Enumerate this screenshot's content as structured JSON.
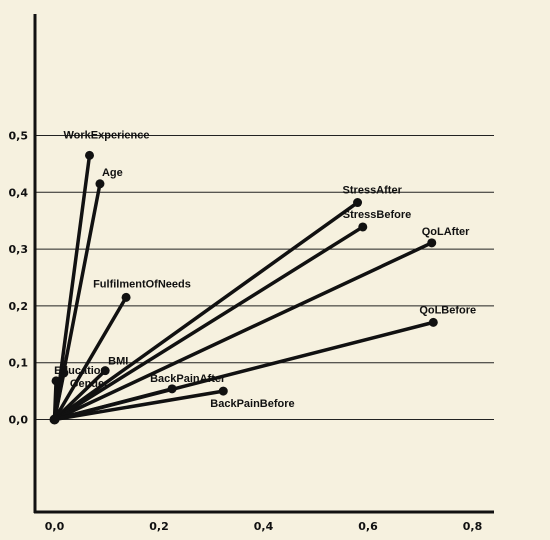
{
  "chart_data": {
    "type": "line",
    "title": "",
    "xlabel": "",
    "ylabel": "",
    "xlim": [
      -0.02,
      0.83
    ],
    "ylim": [
      -0.2,
      0.59
    ],
    "x_ticks": [
      {
        "value": 0.0,
        "label": "0,0"
      },
      {
        "value": 0.2,
        "label": "0,2"
      },
      {
        "value": 0.4,
        "label": "0,4"
      },
      {
        "value": 0.6,
        "label": "0,6"
      },
      {
        "value": 0.8,
        "label": "0,8"
      }
    ],
    "y_ticks": [
      {
        "value": 0.0,
        "label": "0,0"
      },
      {
        "value": 0.1,
        "label": "0,1"
      },
      {
        "value": 0.2,
        "label": "0,2"
      },
      {
        "value": 0.3,
        "label": "0,3"
      },
      {
        "value": 0.4,
        "label": "0,4"
      },
      {
        "value": 0.5,
        "label": "0,5"
      }
    ],
    "grid": "horizontal",
    "origin": [
      0.0,
      0.0
    ],
    "vectors": [
      {
        "name": "WorkExperience",
        "x": 0.067,
        "y": 0.465
      },
      {
        "name": "Age",
        "x": 0.087,
        "y": 0.415
      },
      {
        "name": "FulfilmentOfNeeds",
        "x": 0.137,
        "y": 0.215
      },
      {
        "name": "Education",
        "x": 0.003,
        "y": 0.068
      },
      {
        "name": "BMI",
        "x": 0.097,
        "y": 0.086
      },
      {
        "name": "Gender",
        "x": 0.018,
        "y": 0.082
      },
      {
        "name": "BackPainAfter",
        "x": 0.225,
        "y": 0.054
      },
      {
        "name": "BackPainBefore",
        "x": 0.323,
        "y": 0.05
      },
      {
        "name": "StressAfter",
        "x": 0.58,
        "y": 0.382
      },
      {
        "name": "StressBefore",
        "x": 0.59,
        "y": 0.339
      },
      {
        "name": "QoLAfter",
        "x": 0.722,
        "y": 0.311
      },
      {
        "name": "QoLBefore",
        "x": 0.725,
        "y": 0.171
      }
    ]
  }
}
